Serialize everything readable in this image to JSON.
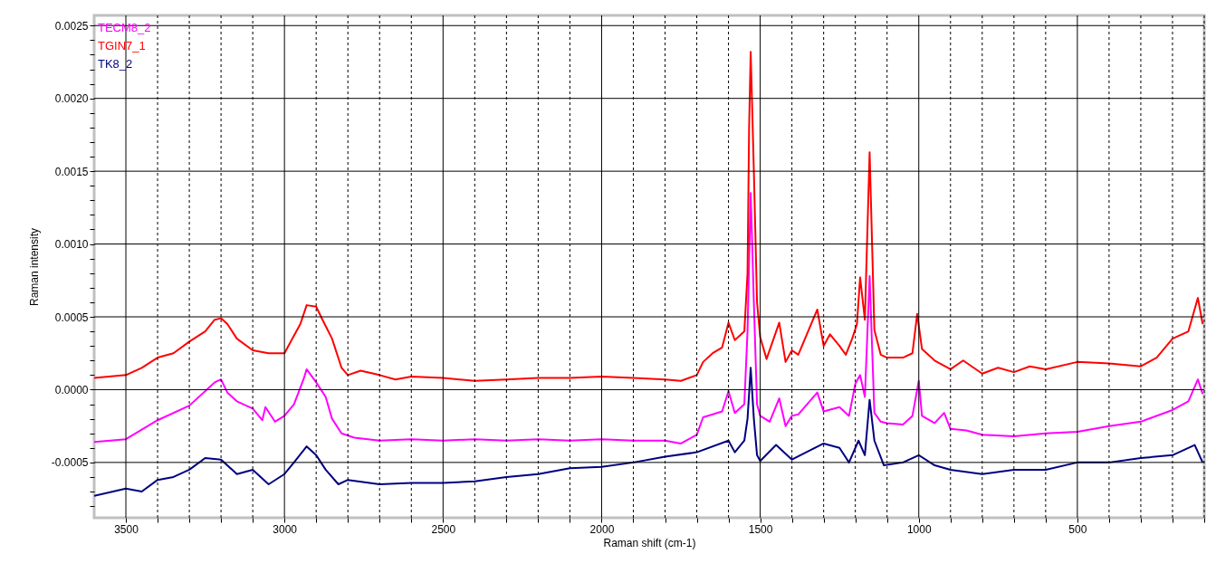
{
  "chart_data": {
    "type": "line",
    "xlabel": "Raman shift (cm-1)",
    "ylabel": "Raman intensity",
    "xlim": [
      3600,
      100
    ],
    "ylim": [
      -0.00088,
      0.00257
    ],
    "xticks": [
      3500,
      {
        "value": 3400,
        "label": null
      },
      {
        "value": 3300,
        "label": null
      },
      {
        "value": 3200,
        "label": null
      },
      {
        "value": 3100,
        "label": null
      },
      3000,
      {
        "value": 2900,
        "label": null
      },
      {
        "value": 2800,
        "label": null
      },
      {
        "value": 2700,
        "label": null
      },
      {
        "value": 2600,
        "label": null
      },
      2500,
      {
        "value": 2400,
        "label": null
      },
      {
        "value": 2300,
        "label": null
      },
      {
        "value": 2200,
        "label": null
      },
      {
        "value": 2100,
        "label": null
      },
      2000,
      {
        "value": 1900,
        "label": null
      },
      {
        "value": 1800,
        "label": null
      },
      {
        "value": 1700,
        "label": null
      },
      {
        "value": 1600,
        "label": null
      },
      1500,
      {
        "value": 1400,
        "label": null
      },
      {
        "value": 1300,
        "label": null
      },
      {
        "value": 1200,
        "label": null
      },
      {
        "value": 1100,
        "label": null
      },
      1000,
      {
        "value": 900,
        "label": null
      },
      {
        "value": 800,
        "label": null
      },
      {
        "value": 700,
        "label": null
      },
      {
        "value": 600,
        "label": null
      },
      500,
      {
        "value": 400,
        "label": null
      },
      {
        "value": 300,
        "label": null
      },
      {
        "value": 200,
        "label": null
      },
      {
        "value": 100,
        "label": null
      }
    ],
    "yticks": [
      {
        "value": -0.0008,
        "label": null
      },
      {
        "value": -0.0007,
        "label": null
      },
      {
        "value": -0.0006,
        "label": null
      },
      {
        "value": -0.0005,
        "label": "-0.0005"
      },
      {
        "value": -0.0004,
        "label": null
      },
      {
        "value": -0.0003,
        "label": null
      },
      {
        "value": -0.0002,
        "label": null
      },
      {
        "value": -0.0001,
        "label": null
      },
      {
        "value": 0,
        "label": "0.0000"
      },
      {
        "value": 0.0001,
        "label": null
      },
      {
        "value": 0.0002,
        "label": null
      },
      {
        "value": 0.0003,
        "label": null
      },
      {
        "value": 0.0004,
        "label": null
      },
      {
        "value": 0.0005,
        "label": "0.0005"
      },
      {
        "value": 0.0006,
        "label": null
      },
      {
        "value": 0.0007,
        "label": null
      },
      {
        "value": 0.0008,
        "label": null
      },
      {
        "value": 0.0009,
        "label": null
      },
      {
        "value": 0.001,
        "label": "0.0010"
      },
      {
        "value": 0.0011,
        "label": null
      },
      {
        "value": 0.0012,
        "label": null
      },
      {
        "value": 0.0013,
        "label": null
      },
      {
        "value": 0.0014,
        "label": null
      },
      {
        "value": 0.0015,
        "label": "0.0015"
      },
      {
        "value": 0.0016,
        "label": null
      },
      {
        "value": 0.0017,
        "label": null
      },
      {
        "value": 0.0018,
        "label": null
      },
      {
        "value": 0.0019,
        "label": null
      },
      {
        "value": 0.002,
        "label": "0.0020"
      },
      {
        "value": 0.0021,
        "label": null
      },
      {
        "value": 0.0022,
        "label": null
      },
      {
        "value": 0.0023,
        "label": null
      },
      {
        "value": 0.0024,
        "label": null
      },
      {
        "value": 0.0025,
        "label": "0.0025"
      }
    ],
    "grid": true,
    "legend": "top left",
    "marker": "none",
    "line_style": "solid",
    "series": [
      {
        "name": "TECM8_2",
        "color": "#ff00ff",
        "x": [
          3600,
          3500,
          3400,
          3300,
          3220,
          3200,
          3180,
          3150,
          3100,
          3070,
          3060,
          3030,
          3000,
          2970,
          2940,
          2930,
          2900,
          2870,
          2850,
          2820,
          2780,
          2700,
          2600,
          2500,
          2400,
          2300,
          2200,
          2100,
          2000,
          1900,
          1800,
          1750,
          1700,
          1680,
          1620,
          1600,
          1580,
          1550,
          1540,
          1530,
          1520,
          1510,
          1500,
          1470,
          1440,
          1420,
          1400,
          1380,
          1320,
          1300,
          1250,
          1220,
          1200,
          1185,
          1170,
          1155,
          1140,
          1120,
          1100,
          1050,
          1020,
          1000,
          990,
          950,
          920,
          900,
          850,
          800,
          700,
          600,
          500,
          400,
          300,
          200,
          150,
          120,
          105
        ],
        "values": [
          -0.00036,
          -0.00034,
          -0.00021,
          -0.00011,
          5e-05,
          7e-05,
          -2e-05,
          -8e-05,
          -0.00013,
          -0.00021,
          -0.00012,
          -0.00022,
          -0.00018,
          -0.0001,
          7e-05,
          0.00014,
          5e-05,
          -5e-05,
          -0.0002,
          -0.0003,
          -0.00033,
          -0.00035,
          -0.00034,
          -0.00035,
          -0.00034,
          -0.00035,
          -0.00034,
          -0.00035,
          -0.00034,
          -0.00035,
          -0.00035,
          -0.00037,
          -0.00031,
          -0.00019,
          -0.00015,
          -1e-05,
          -0.00016,
          -0.0001,
          0.0004,
          0.00135,
          0.0006,
          -0.0001,
          -0.00018,
          -0.00022,
          -6e-05,
          -0.00025,
          -0.00018,
          -0.00017,
          -2e-05,
          -0.00015,
          -0.00012,
          -0.00018,
          4e-05,
          0.0001,
          -5e-05,
          0.00078,
          -0.00016,
          -0.00022,
          -0.00023,
          -0.00024,
          -0.00018,
          6e-05,
          -0.00018,
          -0.00023,
          -0.00016,
          -0.00027,
          -0.00028,
          -0.00031,
          -0.00032,
          -0.0003,
          -0.00029,
          -0.00025,
          -0.00022,
          -0.00014,
          -8e-05,
          7e-05,
          -3e-05
        ]
      },
      {
        "name": "TGIN7_1",
        "color": "#ff0000",
        "x": [
          3600,
          3500,
          3450,
          3400,
          3350,
          3300,
          3250,
          3220,
          3200,
          3180,
          3150,
          3100,
          3050,
          3000,
          2980,
          2950,
          2930,
          2900,
          2880,
          2850,
          2820,
          2800,
          2760,
          2700,
          2650,
          2600,
          2500,
          2400,
          2300,
          2200,
          2100,
          2000,
          1900,
          1800,
          1750,
          1700,
          1680,
          1650,
          1620,
          1600,
          1580,
          1550,
          1540,
          1535,
          1530,
          1520,
          1510,
          1500,
          1480,
          1440,
          1420,
          1400,
          1380,
          1320,
          1300,
          1280,
          1250,
          1230,
          1210,
          1195,
          1185,
          1170,
          1155,
          1140,
          1120,
          1100,
          1050,
          1020,
          1005,
          990,
          950,
          900,
          860,
          800,
          750,
          700,
          650,
          600,
          500,
          400,
          300,
          250,
          200,
          150,
          120,
          105
        ],
        "values": [
          8e-05,
          0.0001,
          0.00015,
          0.00022,
          0.00025,
          0.00033,
          0.0004,
          0.00048,
          0.00049,
          0.00045,
          0.00035,
          0.00027,
          0.00025,
          0.00025,
          0.00033,
          0.00045,
          0.00058,
          0.00057,
          0.00048,
          0.00035,
          0.00015,
          0.0001,
          0.00013,
          0.0001,
          7e-05,
          9e-05,
          8e-05,
          6e-05,
          7e-05,
          8e-05,
          8e-05,
          9e-05,
          8e-05,
          7e-05,
          6e-05,
          0.0001,
          0.00019,
          0.00025,
          0.00029,
          0.00046,
          0.00034,
          0.0004,
          0.0008,
          0.0018,
          0.00232,
          0.0015,
          0.0006,
          0.00036,
          0.00021,
          0.00046,
          0.00019,
          0.00027,
          0.00024,
          0.00055,
          0.0003,
          0.00038,
          0.0003,
          0.00024,
          0.00035,
          0.00045,
          0.00077,
          0.00048,
          0.00163,
          0.00041,
          0.00024,
          0.00022,
          0.00022,
          0.00025,
          0.00052,
          0.00028,
          0.0002,
          0.00014,
          0.0002,
          0.00011,
          0.00015,
          0.00012,
          0.00016,
          0.00014,
          0.00019,
          0.00018,
          0.00016,
          0.00022,
          0.00035,
          0.0004,
          0.00063,
          0.00045
        ]
      },
      {
        "name": "TK8_2",
        "color": "#000080",
        "x": [
          3600,
          3500,
          3450,
          3400,
          3350,
          3300,
          3250,
          3200,
          3150,
          3100,
          3050,
          3000,
          2970,
          2930,
          2900,
          2870,
          2830,
          2800,
          2700,
          2600,
          2500,
          2400,
          2300,
          2200,
          2100,
          2000,
          1900,
          1800,
          1700,
          1600,
          1580,
          1550,
          1540,
          1530,
          1520,
          1510,
          1500,
          1450,
          1400,
          1300,
          1250,
          1220,
          1190,
          1170,
          1155,
          1140,
          1110,
          1050,
          1000,
          950,
          900,
          800,
          700,
          600,
          500,
          400,
          300,
          200,
          130,
          105
        ],
        "values": [
          -0.00073,
          -0.00068,
          -0.0007,
          -0.00062,
          -0.0006,
          -0.00055,
          -0.00047,
          -0.00048,
          -0.00058,
          -0.00055,
          -0.00065,
          -0.00058,
          -0.0005,
          -0.00039,
          -0.00045,
          -0.00055,
          -0.00065,
          -0.00062,
          -0.00065,
          -0.00064,
          -0.00064,
          -0.00063,
          -0.0006,
          -0.00058,
          -0.00054,
          -0.00053,
          -0.0005,
          -0.00046,
          -0.00043,
          -0.00035,
          -0.00043,
          -0.00035,
          -0.0002,
          0.00015,
          -0.0002,
          -0.00045,
          -0.00049,
          -0.00038,
          -0.00048,
          -0.00037,
          -0.0004,
          -0.0005,
          -0.00035,
          -0.00045,
          -7e-05,
          -0.00035,
          -0.00052,
          -0.0005,
          -0.00045,
          -0.00052,
          -0.00055,
          -0.00058,
          -0.00055,
          -0.00055,
          -0.0005,
          -0.0005,
          -0.00047,
          -0.00045,
          -0.00038,
          -0.0005
        ]
      }
    ]
  }
}
